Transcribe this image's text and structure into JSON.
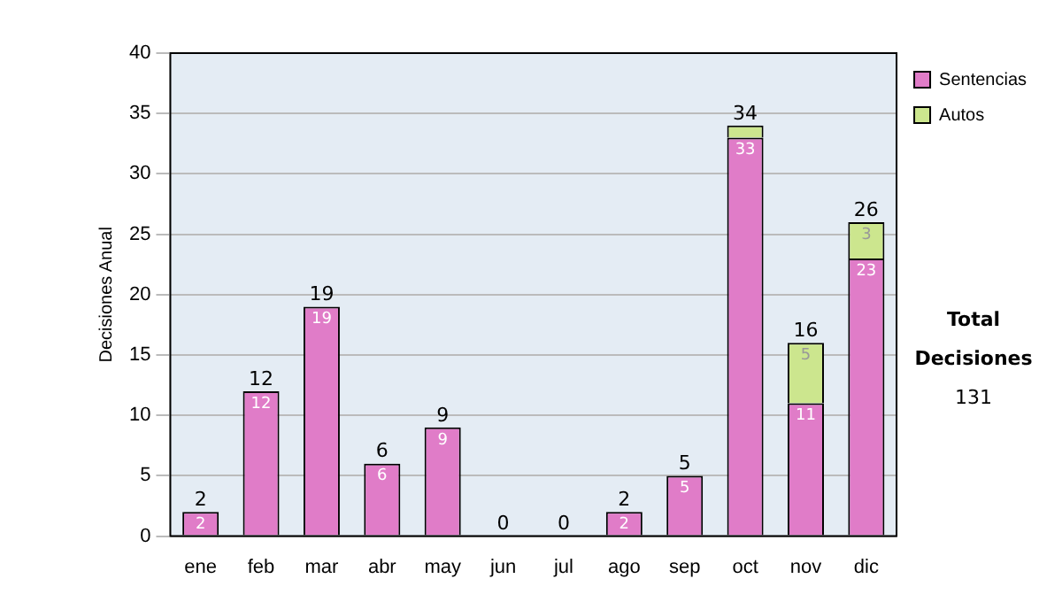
{
  "chart_data": {
    "type": "bar",
    "stacked": true,
    "ylabel": "Decisiones Anual",
    "categories": [
      "ene",
      "feb",
      "mar",
      "abr",
      "may",
      "jun",
      "jul",
      "ago",
      "sep",
      "oct",
      "nov",
      "dic"
    ],
    "series": [
      {
        "name": "Sentencias",
        "color": "#e07cc8",
        "values": [
          2,
          12,
          19,
          6,
          9,
          0,
          0,
          2,
          5,
          33,
          11,
          23
        ],
        "value_labels": [
          "2",
          "12",
          "19",
          "6",
          "9",
          null,
          null,
          "2",
          "5",
          "33",
          "11",
          "23"
        ]
      },
      {
        "name": "Autos",
        "color": "#cce68e",
        "values": [
          0,
          0,
          0,
          0,
          0,
          0,
          0,
          0,
          0,
          1,
          5,
          3
        ],
        "value_labels": [
          null,
          null,
          null,
          null,
          null,
          null,
          null,
          null,
          null,
          null,
          "5",
          "3"
        ]
      }
    ],
    "totals": [
      "2",
      "12",
      "19",
      "6",
      "9",
      "0",
      "0",
      "2",
      "5",
      "34",
      "16",
      "26"
    ],
    "ylim": [
      0,
      40
    ],
    "yticks": [
      0,
      5,
      10,
      15,
      20,
      25,
      30,
      35,
      40
    ],
    "grid": "y",
    "legend": "right",
    "annotations": [
      "Total Decisiones",
      "131"
    ]
  }
}
